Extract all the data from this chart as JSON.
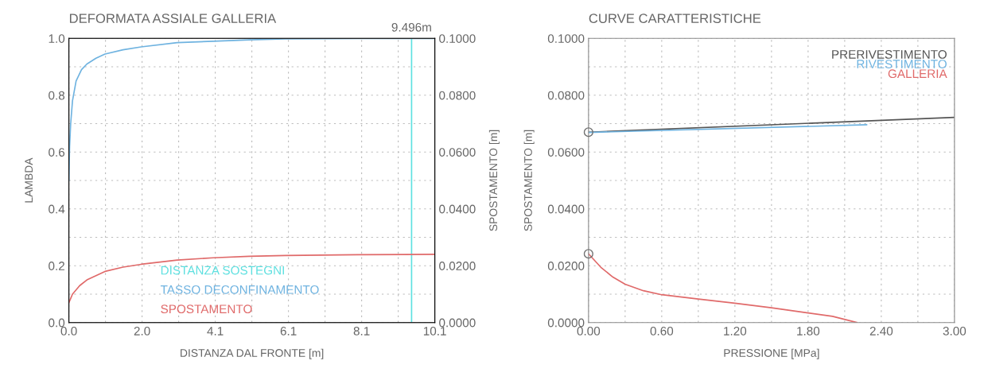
{
  "chart_data": [
    {
      "type": "line",
      "title": "DEFORMATA ASSIALE GALLERIA",
      "xlabel": "DISTANZA DAL FRONTE [m]",
      "ylabel": "LAMBDA",
      "y2label": "SPOSTAMENTO [m]",
      "xlim": [
        0,
        10.14
      ],
      "xticks": [
        {
          "value": 0,
          "label": "0.0"
        },
        {
          "value": 1.014,
          "label": null
        },
        {
          "value": 2.028,
          "label": "2.0"
        },
        {
          "value": 3.042,
          "label": null
        },
        {
          "value": 4.056,
          "label": "4.1"
        },
        {
          "value": 5.07,
          "label": null
        },
        {
          "value": 6.084,
          "label": "6.1"
        },
        {
          "value": 7.098,
          "label": null
        },
        {
          "value": 8.112,
          "label": "8.1"
        },
        {
          "value": 9.126,
          "label": null
        },
        {
          "value": 10.14,
          "label": "10.1"
        }
      ],
      "ylim": [
        0,
        1
      ],
      "yticks": [
        {
          "value": 0,
          "label": "0.0"
        },
        {
          "value": 0.1,
          "label": null
        },
        {
          "value": 0.2,
          "label": "0.2"
        },
        {
          "value": 0.3,
          "label": null
        },
        {
          "value": 0.4,
          "label": "0.4"
        },
        {
          "value": 0.5,
          "label": null
        },
        {
          "value": 0.6,
          "label": "0.6"
        },
        {
          "value": 0.7,
          "label": null
        },
        {
          "value": 0.8,
          "label": "0.8"
        },
        {
          "value": 0.9,
          "label": null
        },
        {
          "value": 1,
          "label": "1.0"
        }
      ],
      "y2lim": [
        0,
        0.1
      ],
      "y2ticks": [
        {
          "value": 0,
          "label": "0.0000"
        },
        {
          "value": 0.02,
          "label": "0.0200"
        },
        {
          "value": 0.04,
          "label": "0.0400"
        },
        {
          "value": 0.06,
          "label": "0.0600"
        },
        {
          "value": 0.08,
          "label": "0.0800"
        },
        {
          "value": 0.1,
          "label": "0.1000"
        }
      ],
      "grid": true,
      "legend": "bottom left",
      "line_style": "solid",
      "series": [
        {
          "name": "TASSO DECONFINAMENTO",
          "color": "#6fb3e0",
          "x": [
            0,
            0.02,
            0.05,
            0.1,
            0.2,
            0.35,
            0.5,
            0.75,
            1.0,
            1.5,
            2,
            3,
            4,
            5,
            6,
            8,
            10.14
          ],
          "values": [
            0.5,
            0.62,
            0.7,
            0.78,
            0.85,
            0.89,
            0.91,
            0.93,
            0.945,
            0.96,
            0.97,
            0.985,
            0.99,
            0.995,
            0.998,
            1.0,
            1.0
          ]
        },
        {
          "name": "SPOSTAMENTO",
          "color": "#e06a6a",
          "axis": "y2",
          "x": [
            0,
            0.05,
            0.1,
            0.3,
            0.5,
            1.0,
            1.5,
            2,
            3,
            4,
            5,
            6,
            8,
            10.14
          ],
          "values": [
            0.007,
            0.0085,
            0.01,
            0.013,
            0.015,
            0.018,
            0.0195,
            0.0205,
            0.022,
            0.0228,
            0.0233,
            0.0236,
            0.0239,
            0.024
          ]
        }
      ],
      "ref_lines": [
        {
          "axis": "x",
          "value": 9.496,
          "label": "DISTANZA SOSTEGNI",
          "color": "#5ee0e0"
        }
      ],
      "annotations": [
        {
          "text": "9.496m",
          "x": 9.496,
          "y": 1
        }
      ]
    },
    {
      "type": "line",
      "title": "CURVE CARATTERISTICHE",
      "xlabel": "PRESSIONE [MPa]",
      "ylabel": "SPOSTAMENTO [m]",
      "xlim": [
        0,
        3
      ],
      "xticks": [
        {
          "value": 0,
          "label": "0.00"
        },
        {
          "value": 0.3,
          "label": null
        },
        {
          "value": 0.6,
          "label": "0.60"
        },
        {
          "value": 0.9,
          "label": null
        },
        {
          "value": 1.2,
          "label": "1.20"
        },
        {
          "value": 1.5,
          "label": null
        },
        {
          "value": 1.8,
          "label": "1.80"
        },
        {
          "value": 2.1,
          "label": null
        },
        {
          "value": 2.4,
          "label": "2.40"
        },
        {
          "value": 2.7,
          "label": null
        },
        {
          "value": 3,
          "label": "3.00"
        }
      ],
      "ylim": [
        0,
        0.1
      ],
      "yticks": [
        {
          "value": 0,
          "label": "0.0000"
        },
        {
          "value": 0.01,
          "label": null
        },
        {
          "value": 0.02,
          "label": "0.0200"
        },
        {
          "value": 0.03,
          "label": null
        },
        {
          "value": 0.04,
          "label": "0.0400"
        },
        {
          "value": 0.05,
          "label": null
        },
        {
          "value": 0.06,
          "label": "0.0600"
        },
        {
          "value": 0.07,
          "label": null
        },
        {
          "value": 0.08,
          "label": "0.0800"
        },
        {
          "value": 0.09,
          "label": null
        },
        {
          "value": 0.1,
          "label": "0.1000"
        }
      ],
      "grid": true,
      "legend": "top right",
      "line_style": "solid",
      "series": [
        {
          "name": "PRERIVESTIMENTO",
          "color": "#555555",
          "x": [
            0,
            3
          ],
          "values": [
            0.067,
            0.0722
          ]
        },
        {
          "name": "RIVESTIMENTO",
          "color": "#6fb3e0",
          "x": [
            0,
            2.28
          ],
          "values": [
            0.0669,
            0.0696
          ]
        },
        {
          "name": "GALLERIA",
          "color": "#e06a6a",
          "x": [
            0,
            0.1,
            0.2,
            0.3,
            0.45,
            0.6,
            0.9,
            1.2,
            1.5,
            1.8,
            2.0,
            2.2
          ],
          "values": [
            0.0242,
            0.0195,
            0.016,
            0.0135,
            0.0112,
            0.0098,
            0.0083,
            0.0068,
            0.0052,
            0.0034,
            0.0022,
            0.0
          ]
        },
        {
          "type": "scatter",
          "color": "#707070",
          "marker": "circle",
          "x": [
            0,
            0
          ],
          "values": [
            0.067,
            0.0242
          ]
        }
      ]
    }
  ]
}
